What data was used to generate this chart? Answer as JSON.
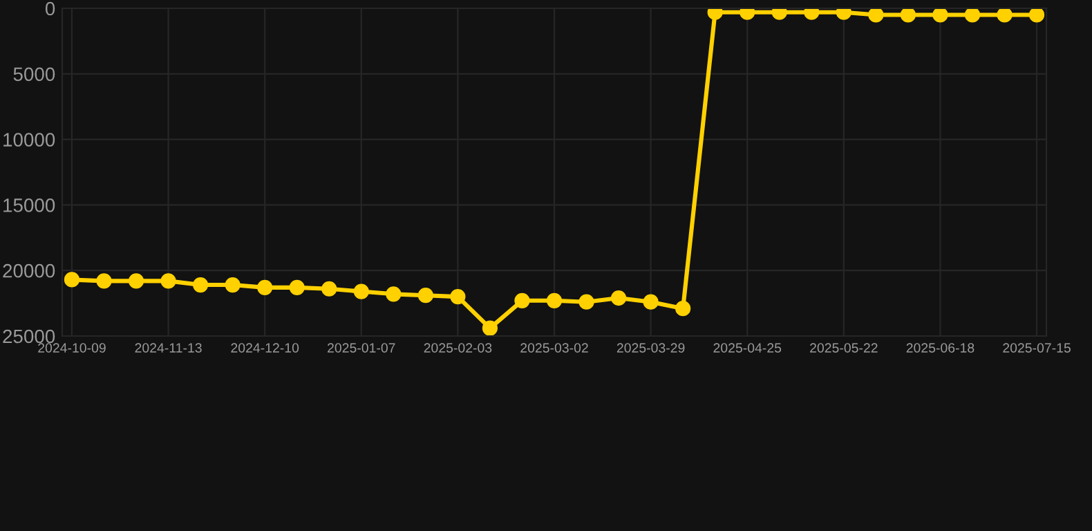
{
  "chart_data": {
    "type": "line",
    "categories": [
      "2024-10-09",
      null,
      null,
      "2024-11-13",
      null,
      null,
      "2024-12-10",
      null,
      null,
      "2025-01-07",
      null,
      null,
      "2025-02-03",
      null,
      null,
      "2025-03-02",
      null,
      null,
      "2025-03-29",
      null,
      null,
      "2025-04-25",
      null,
      null,
      "2025-05-22",
      null,
      null,
      "2025-06-18",
      null,
      null,
      "2025-07-15"
    ],
    "series": [
      {
        "color": "#ffd100",
        "values": [
          20700,
          20800,
          20800,
          20800,
          21100,
          21100,
          21300,
          21300,
          21400,
          21600,
          21800,
          21900,
          22000,
          24400,
          22300,
          22300,
          22400,
          22100,
          22400,
          22900,
          300,
          300,
          300,
          300,
          300,
          500,
          500,
          500,
          500,
          500,
          500
        ]
      }
    ],
    "ylim": [
      25000,
      0
    ],
    "yticks": [
      0,
      5000,
      10000,
      15000,
      20000,
      25000
    ],
    "grid": true,
    "marker": "circle",
    "line_style": "solid"
  }
}
